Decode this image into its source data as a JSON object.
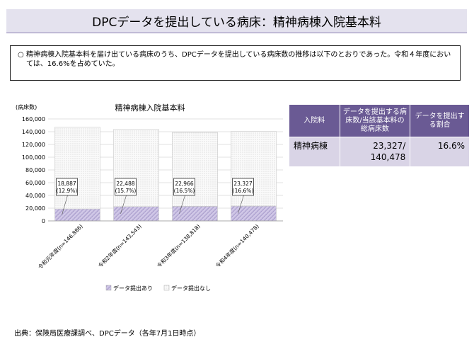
{
  "header": {
    "title": "DPCデータを提出している病床：精神病棟入院基本料"
  },
  "summary": {
    "bullet": "○",
    "text": "精神病棟入院基本料を届け出ている病床のうち、DPCデータを提出している病床数の推移は以下のとおりであった。令和４年度においては、16.6%を占めていた。"
  },
  "chart_data": {
    "type": "bar",
    "title": "精神病棟入院基本料",
    "ylabel": "(病床数)",
    "ylim": [
      0,
      160000
    ],
    "yticks": [
      "0",
      "20,000",
      "40,000",
      "60,000",
      "80,000",
      "100,000",
      "120,000",
      "140,000",
      "160,000"
    ],
    "categories": [
      "令和元年度(n=146,886)",
      "令和2年度(n=143,543)",
      "令和3年度(n=138,818)",
      "令和4年度(n=140,478)"
    ],
    "stacked": true,
    "series": [
      {
        "name": "データ提出あり",
        "values": [
          18887,
          22488,
          22966,
          23327
        ],
        "color": "#b4a7d6"
      },
      {
        "name": "データ提出なし",
        "values": [
          127999,
          121055,
          115852,
          117151
        ],
        "color": "#f2f2f2"
      }
    ],
    "annotations": [
      "18,887\n(12.9%)",
      "22,488\n(15.7%)",
      "22,966\n(16.5%)",
      "23,327\n(16.6%)"
    ],
    "legend": "bottom"
  },
  "table": {
    "headers": [
      "入院料",
      "データを提出する病床数/当該基本料の総病床数",
      "データを提出する割合"
    ],
    "rows": [
      [
        "精神病棟",
        "23,327/\n140,478",
        "16.6%"
      ]
    ]
  },
  "source": "出典：保険局医療課調べ、DPCデータ（各年7月1日時点）",
  "colors": {
    "header_bg": "#6a5a94",
    "cell_bg": "#d9d4e6",
    "title_bg": "#e4e2ee"
  }
}
